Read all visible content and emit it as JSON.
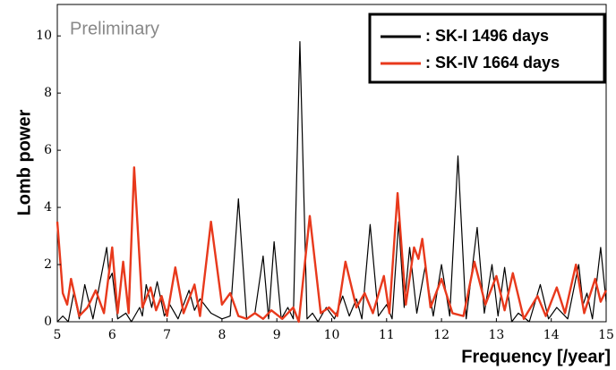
{
  "chart_data": {
    "type": "line",
    "annotation": "Preliminary",
    "x_label": "Frequency [/year]",
    "y_label": "Lomb power",
    "xlim": [
      5,
      15
    ],
    "ylim": [
      0,
      11.1
    ],
    "xticks": [
      5,
      6,
      7,
      8,
      9,
      10,
      11,
      12,
      13,
      14,
      15
    ],
    "yticks": [
      0,
      2,
      4,
      6,
      8,
      10
    ],
    "legend": "upper right",
    "series": [
      {
        "name": ": SK-I 1496 days",
        "color": "#000000",
        "x": [
          5.0,
          5.1,
          5.2,
          5.3,
          5.4,
          5.5,
          5.65,
          5.9,
          5.95,
          6.0,
          6.1,
          6.25,
          6.35,
          6.5,
          6.55,
          6.62,
          6.72,
          6.82,
          6.95,
          7.05,
          7.2,
          7.4,
          7.5,
          7.6,
          7.8,
          8.0,
          8.15,
          8.3,
          8.45,
          8.6,
          8.75,
          8.85,
          8.95,
          9.08,
          9.2,
          9.3,
          9.42,
          9.55,
          9.65,
          9.75,
          9.9,
          10.05,
          10.2,
          10.32,
          10.45,
          10.55,
          10.7,
          10.85,
          11.0,
          11.1,
          11.22,
          11.32,
          11.42,
          11.55,
          11.7,
          11.85,
          12.0,
          12.15,
          12.3,
          12.45,
          12.65,
          12.78,
          12.92,
          13.03,
          13.15,
          13.28,
          13.4,
          13.6,
          13.8,
          13.95,
          14.1,
          14.3,
          14.5,
          14.58,
          14.65,
          14.75,
          14.9,
          15.0
        ],
        "values": [
          0,
          0.2,
          0,
          1.0,
          0.1,
          1.3,
          0.1,
          2.6,
          1.5,
          1.7,
          0.1,
          0.3,
          0,
          0.5,
          0.2,
          1.3,
          0.5,
          1.4,
          0.2,
          0.6,
          0.1,
          1.1,
          0.4,
          0.8,
          0.3,
          0.1,
          0.2,
          4.3,
          0.1,
          0.3,
          2.3,
          0.1,
          2.8,
          0.1,
          0.5,
          0.1,
          9.8,
          0.1,
          0.3,
          0,
          0.5,
          0.1,
          0.9,
          0.2,
          0.8,
          0.1,
          3.4,
          0.2,
          0.6,
          0.1,
          3.5,
          0.5,
          2.6,
          0.3,
          1.9,
          0.2,
          2.0,
          0.2,
          5.8,
          0.1,
          3.3,
          0.3,
          2.0,
          0.2,
          1.9,
          0,
          0.3,
          0,
          1.3,
          0.1,
          0.5,
          0.1,
          2.0,
          0.6,
          1.0,
          0.1,
          2.6,
          0.7
        ]
      },
      {
        "name": ": SK-IV 1664 days",
        "color": "#e8391c",
        "x": [
          5.0,
          5.1,
          5.18,
          5.25,
          5.4,
          5.55,
          5.7,
          5.85,
          6.0,
          6.1,
          6.2,
          6.3,
          6.4,
          6.55,
          6.7,
          6.8,
          6.9,
          7.0,
          7.15,
          7.3,
          7.5,
          7.6,
          7.8,
          8.0,
          8.15,
          8.3,
          8.45,
          8.6,
          8.75,
          8.9,
          9.1,
          9.3,
          9.4,
          9.6,
          9.8,
          9.95,
          10.1,
          10.25,
          10.45,
          10.6,
          10.75,
          10.95,
          11.05,
          11.2,
          11.35,
          11.5,
          11.58,
          11.65,
          11.8,
          12.0,
          12.2,
          12.4,
          12.6,
          12.8,
          13.0,
          13.15,
          13.3,
          13.5,
          13.75,
          13.9,
          14.1,
          14.25,
          14.45,
          14.6,
          14.8,
          14.9,
          15.0
        ],
        "values": [
          3.5,
          1.0,
          0.6,
          1.5,
          0.2,
          0.5,
          1.1,
          0.3,
          2.6,
          0.3,
          2.1,
          0.3,
          5.4,
          0.5,
          1.2,
          0.4,
          0.9,
          0.2,
          1.9,
          0.3,
          1.3,
          0.2,
          3.5,
          0.6,
          1.0,
          0.2,
          0.1,
          0.3,
          0.1,
          0.4,
          0.1,
          0.5,
          0,
          3.7,
          0.3,
          0.5,
          0.2,
          2.1,
          0.5,
          1.0,
          0.3,
          1.6,
          0.3,
          4.5,
          0.6,
          2.6,
          2.2,
          2.9,
          0.5,
          1.5,
          0.3,
          0.2,
          2.1,
          0.6,
          1.6,
          0.4,
          1.7,
          0.1,
          0.9,
          0.2,
          1.2,
          0.3,
          2.0,
          0.3,
          1.5,
          0.7,
          1.1
        ]
      }
    ]
  }
}
